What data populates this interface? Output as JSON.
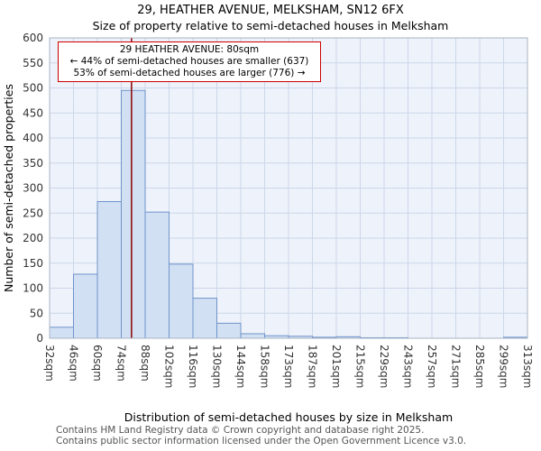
{
  "title": "29, HEATHER AVENUE, MELKSHAM, SN12 6FX",
  "subtitle": "Size of property relative to semi-detached houses in Melksham",
  "annotation": {
    "line1": "29 HEATHER AVENUE: 80sqm",
    "line2": "← 44% of semi-detached houses are smaller (637)",
    "line3": "53% of semi-detached houses are larger (776) →"
  },
  "footer": {
    "line1": "Contains HM Land Registry data © Crown copyright and database right 2025.",
    "line2": "Contains public sector information licensed under the Open Government Licence v3.0."
  },
  "chart_data": {
    "type": "bar",
    "title": "29, HEATHER AVENUE, MELKSHAM, SN12 6FX",
    "subtitle": "Size of property relative to semi-detached houses in Melksham",
    "xlabel": "Distribution of semi-detached houses by size in Melksham",
    "ylabel": "Number of semi-detached properties",
    "bin_edges": [
      32,
      46,
      60,
      74,
      88,
      102,
      116,
      130,
      144,
      158,
      173,
      187,
      201,
      215,
      229,
      243,
      257,
      271,
      285,
      299,
      313
    ],
    "tick_labels": [
      "32sqm",
      "46sqm",
      "60sqm",
      "74sqm",
      "88sqm",
      "102sqm",
      "116sqm",
      "130sqm",
      "144sqm",
      "158sqm",
      "173sqm",
      "187sqm",
      "201sqm",
      "215sqm",
      "229sqm",
      "243sqm",
      "257sqm",
      "271sqm",
      "285sqm",
      "299sqm",
      "313sqm"
    ],
    "values": [
      22,
      128,
      273,
      495,
      252,
      148,
      80,
      30,
      9,
      5,
      4,
      2,
      3,
      1,
      1,
      0,
      0,
      0,
      0,
      2
    ],
    "ylim": [
      0,
      600
    ],
    "ytick_step": 50,
    "marker_value": 80,
    "marker_label": "80sqm",
    "grid": true,
    "legend": false,
    "colors": {
      "bar_fill": "#d2e0f4",
      "bar_stroke": "#6f94ca",
      "marker_line": "#8b0000",
      "grid": "#ccd7ea",
      "plot_bg": "#eef2fa",
      "frame": "#aab4c4",
      "annotation_border": "#cc0000",
      "tick_text": "#333333",
      "footer_text": "#555555"
    }
  }
}
